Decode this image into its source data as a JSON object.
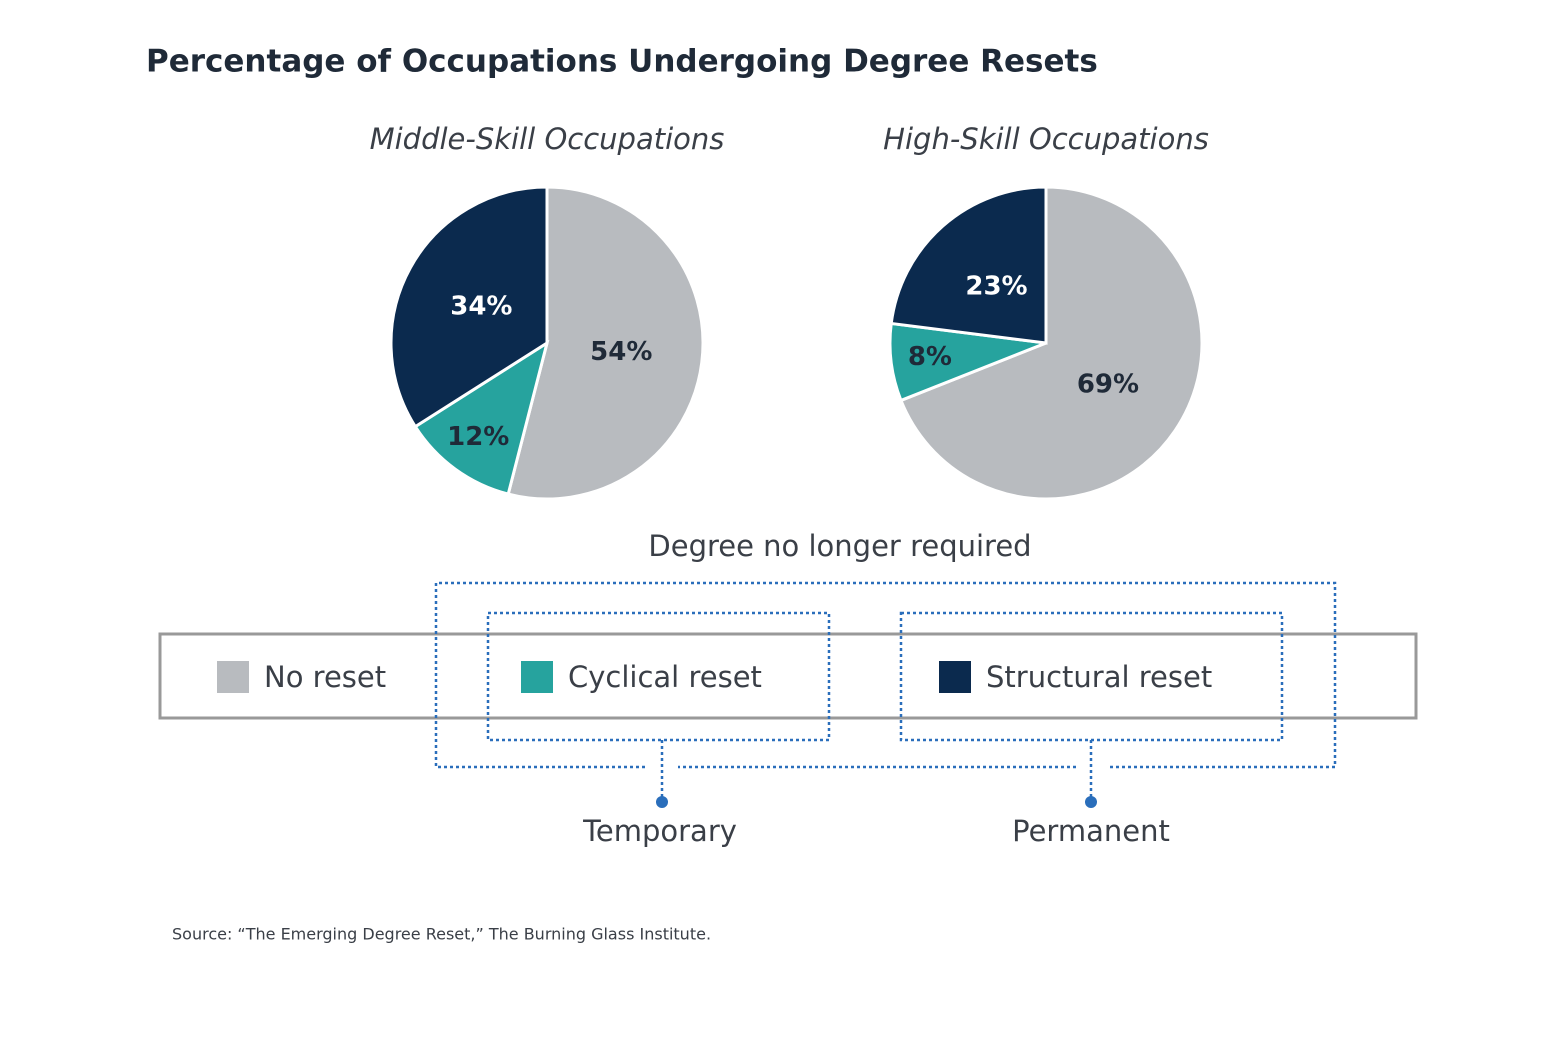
{
  "title": "Percentage of Occupations Undergoing Degree Resets",
  "chart_data": [
    {
      "type": "pie",
      "title": "Middle-Skill Occupations",
      "categories": [
        "No reset",
        "Cyclical reset",
        "Structural reset"
      ],
      "values": [
        54,
        12,
        34
      ],
      "value_labels": [
        "54%",
        "12%",
        "34%"
      ],
      "colors": [
        "#b8bbbf",
        "#26a39e",
        "#0b2a4e"
      ]
    },
    {
      "type": "pie",
      "title": "High-Skill Occupations",
      "categories": [
        "No reset",
        "Cyclical reset",
        "Structural reset"
      ],
      "values": [
        69,
        8,
        23
      ],
      "value_labels": [
        "69%",
        "8%",
        "23%"
      ],
      "colors": [
        "#b8bbbf",
        "#26a39e",
        "#0b2a4e"
      ]
    }
  ],
  "annotations": {
    "group": "Degree no longer required",
    "temporary": "Temporary",
    "permanent": "Permanent"
  },
  "source": "Source: “The Emerging Degree Reset,” The Burning Glass Institute."
}
